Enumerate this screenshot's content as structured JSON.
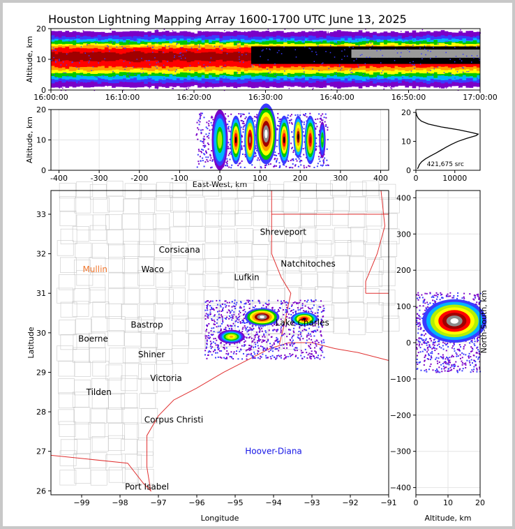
{
  "page": {
    "title": "Houston Lightning Mapping Array 1600-1700 UTC June 13, 2025"
  },
  "chart_data": [
    {
      "type": "heatmap",
      "panel": "altitude-vs-time",
      "ylabel": "Altitude, km",
      "ylim": [
        0,
        20
      ],
      "yticks": [
        "0",
        "10",
        "20"
      ],
      "xticks": [
        "16:00:00",
        "16:10:00",
        "16:20:00",
        "16:30:00",
        "16:40:00",
        "16:50:00",
        "17:00:00"
      ],
      "xlim_minutes": [
        0,
        60
      ]
    },
    {
      "type": "heatmap",
      "panel": "altitude-vs-east-west",
      "xlabel": "East-West, km",
      "ylabel": "Altitude, km",
      "xlim": [
        -420,
        420
      ],
      "ylim": [
        0,
        20
      ],
      "xticks": [
        -400,
        -300,
        -200,
        -100,
        0,
        100,
        200,
        300,
        400
      ],
      "yticks": [
        0,
        10,
        20
      ],
      "cells": [
        {
          "x": 0,
          "z": 10,
          "w": 20,
          "h": 10,
          "level": 0.4
        },
        {
          "x": 40,
          "z": 10,
          "w": 14,
          "h": 8,
          "level": 0.75
        },
        {
          "x": 75,
          "z": 10,
          "w": 14,
          "h": 8,
          "level": 0.85
        },
        {
          "x": 115,
          "z": 12,
          "w": 26,
          "h": 10,
          "level": 1.0
        },
        {
          "x": 160,
          "z": 10,
          "w": 14,
          "h": 8,
          "level": 0.75
        },
        {
          "x": 195,
          "z": 11,
          "w": 12,
          "h": 7,
          "level": 0.8
        },
        {
          "x": 225,
          "z": 10,
          "w": 14,
          "h": 8,
          "level": 0.7
        },
        {
          "x": 255,
          "z": 10,
          "w": 8,
          "h": 6,
          "level": 0.35
        }
      ]
    },
    {
      "type": "line",
      "panel": "altitude-histogram",
      "annotation": "421,675 src",
      "xlim": [
        0,
        16500
      ],
      "ylim": [
        0,
        21
      ],
      "xticks": [
        0,
        10000
      ],
      "yticks": [
        0,
        10,
        20
      ],
      "x": [
        400,
        600,
        900,
        1500,
        2500,
        3800,
        5200,
        6500,
        7800,
        9200,
        10800,
        13000,
        15500,
        16000,
        14500,
        11000,
        6500,
        3200,
        1400,
        600,
        200,
        50
      ],
      "y": [
        0.5,
        1,
        2,
        3,
        4,
        5,
        6,
        7,
        8,
        9,
        10,
        11,
        12,
        12.5,
        13,
        14,
        15,
        16,
        17,
        18,
        19,
        20
      ]
    },
    {
      "type": "map",
      "panel": "plan-view",
      "xlabel": "Longitude",
      "ylabel": "Latitude",
      "xlim": [
        -99.8,
        -91
      ],
      "ylim": [
        25.9,
        33.6
      ],
      "xticks": [
        -99,
        -98,
        -97,
        -96,
        -95,
        -94,
        -93,
        -92,
        -91
      ],
      "yticks": [
        26,
        27,
        28,
        29,
        30,
        31,
        32,
        33
      ],
      "places": [
        {
          "name": "Shreveport",
          "lon": -93.75,
          "lat": 32.55,
          "color": "#000000"
        },
        {
          "name": "Corsicana",
          "lon": -96.45,
          "lat": 32.1,
          "color": "#000000"
        },
        {
          "name": "Natchitoches",
          "lon": -93.1,
          "lat": 31.75,
          "color": "#000000"
        },
        {
          "name": "Mullin",
          "lon": -98.65,
          "lat": 31.6,
          "color": "#f07830"
        },
        {
          "name": "Waco",
          "lon": -97.15,
          "lat": 31.6,
          "color": "#000000"
        },
        {
          "name": "Lufkin",
          "lon": -94.7,
          "lat": 31.4,
          "color": "#000000"
        },
        {
          "name": "Bastrop",
          "lon": -97.3,
          "lat": 30.2,
          "color": "#000000"
        },
        {
          "name": "Lake Charles",
          "lon": -93.25,
          "lat": 30.25,
          "color": "#000000"
        },
        {
          "name": "Boerne",
          "lon": -98.7,
          "lat": 29.85,
          "color": "#000000"
        },
        {
          "name": "Shiner",
          "lon": -97.18,
          "lat": 29.45,
          "color": "#000000"
        },
        {
          "name": "Victoria",
          "lon": -96.8,
          "lat": 28.85,
          "color": "#000000"
        },
        {
          "name": "Tilden",
          "lon": -98.55,
          "lat": 28.5,
          "color": "#000000"
        },
        {
          "name": "Corpus Christi",
          "lon": -96.6,
          "lat": 27.8,
          "color": "#000000"
        },
        {
          "name": "Hoover-Diana",
          "lon": -94.0,
          "lat": 27.0,
          "color": "#1414e6"
        },
        {
          "name": "Port Isabel",
          "lon": -97.3,
          "lat": 26.1,
          "color": "#000000"
        }
      ],
      "storm_cores": [
        {
          "lon": -94.3,
          "lat": 30.4,
          "r": 0.45,
          "level": 1.0
        },
        {
          "lon": -93.2,
          "lat": 30.35,
          "r": 0.35,
          "level": 0.75
        },
        {
          "lon": -95.1,
          "lat": 29.9,
          "r": 0.35,
          "level": 0.55
        }
      ]
    },
    {
      "type": "heatmap",
      "panel": "north-south-vs-altitude",
      "xlabel": "Altitude, km",
      "ylabel": "North-South, km",
      "xlim": [
        0,
        20
      ],
      "ylim": [
        -420,
        420
      ],
      "xticks": [
        0,
        10,
        20
      ],
      "yticks": [
        -400,
        -300,
        -200,
        -100,
        0,
        100,
        200,
        300,
        400
      ],
      "core": {
        "x": 12,
        "y": 60,
        "w": 10,
        "h": 60,
        "level": 1.0
      }
    }
  ]
}
